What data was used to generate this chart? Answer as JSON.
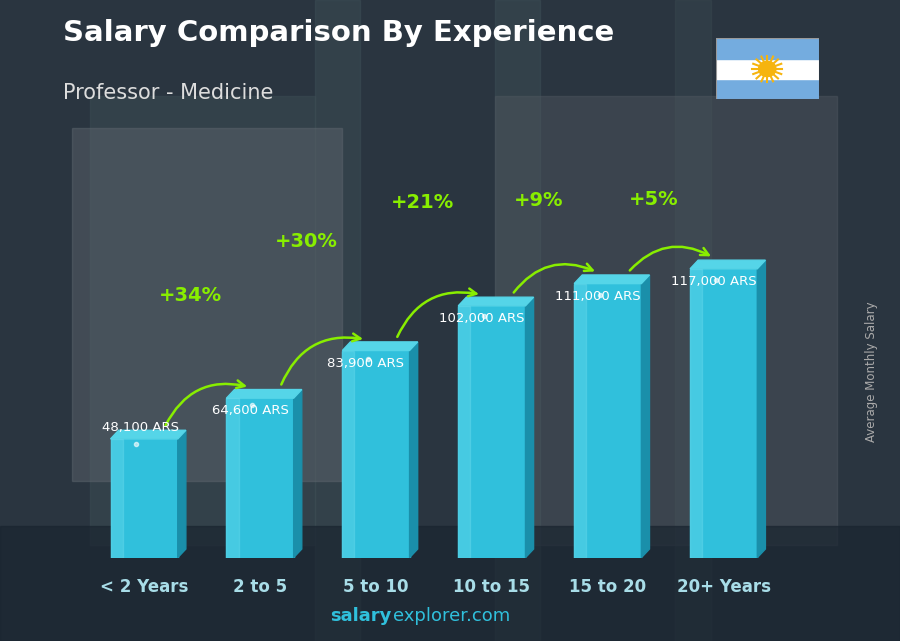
{
  "title": "Salary Comparison By Experience",
  "subtitle": "Professor - Medicine",
  "categories": [
    "< 2 Years",
    "2 to 5",
    "5 to 10",
    "10 to 15",
    "15 to 20",
    "20+ Years"
  ],
  "values": [
    48100,
    64600,
    83900,
    102000,
    111000,
    117000
  ],
  "labels": [
    "48,100 ARS",
    "64,600 ARS",
    "83,900 ARS",
    "102,000 ARS",
    "111,000 ARS",
    "117,000 ARS"
  ],
  "pct_labels": [
    "+34%",
    "+30%",
    "+21%",
    "+9%",
    "+5%"
  ],
  "bar_color_face": "#30C0DC",
  "bar_color_dark": "#1A8FAA",
  "bar_color_light": "#70DDEF",
  "bar_color_top": "#55D5E8",
  "bg_dark": "#2a3540",
  "title_color": "#ffffff",
  "subtitle_color": "#dddddd",
  "pct_color": "#88ee00",
  "val_label_color": "#ffffff",
  "xticklabel_color_text": "#cccccc",
  "xticklabel_color_num": "#30C0DC",
  "watermark_bold": "salary",
  "watermark_rest": "explorer.com",
  "watermark_color": "#30C0DC",
  "ylabel": "Average Monthly Salary",
  "ylim": [
    0,
    135000
  ],
  "arc_rad": -0.4
}
